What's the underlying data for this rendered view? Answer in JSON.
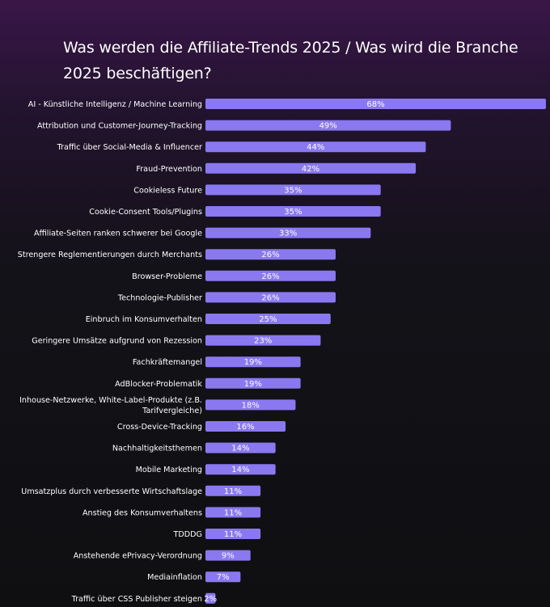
{
  "title": "Was werden die Affiliate-Trends 2025 / Was wird die Branche 2025 beschäftigen?",
  "colors": {
    "bar": "#8a78f0",
    "text": "#ffffff",
    "background": "#131218"
  },
  "chart_data": {
    "type": "bar",
    "orientation": "horizontal",
    "title": "Was werden die Affiliate-Trends 2025 / Was wird die Branche 2025 beschäftigen?",
    "xlim": [
      0,
      68
    ],
    "grid": false,
    "categories": [
      [
        "AI - Künstliche Intelligenz / Machine Learning"
      ],
      [
        "Attribution und Customer-Journey-Tracking"
      ],
      [
        "Traffic über Social-Media & Influencer"
      ],
      [
        "Fraud-Prevention"
      ],
      [
        "Cookieless Future"
      ],
      [
        "Cookie-Consent Tools/Plugins"
      ],
      [
        "Affiliate-Seiten ranken schwerer bei Google"
      ],
      [
        "Strengere Reglementierungen durch Merchants"
      ],
      [
        "Browser-Probleme"
      ],
      [
        "Technologie-Publisher"
      ],
      [
        "Einbruch im Konsumverhalten"
      ],
      [
        "Geringere Umsätze aufgrund von Rezession"
      ],
      [
        "Fachkräftemangel"
      ],
      [
        "AdBlocker-Problematik"
      ],
      [
        "Inhouse-Netzwerke, White-Label-Produkte (z.B.",
        "Tarifvergleiche)"
      ],
      [
        "Cross-Device-Tracking"
      ],
      [
        "Nachhaltigkeitsthemen"
      ],
      [
        "Mobile Marketing"
      ],
      [
        "Umsatzplus durch verbesserte Wirtschaftslage"
      ],
      [
        "Anstieg des Konsumverhaltens"
      ],
      [
        "TDDDG"
      ],
      [
        "Anstehende ePrivacy-Verordnung"
      ],
      [
        "Mediainflation"
      ],
      [
        "Traffic über CSS Publisher steigen"
      ]
    ],
    "values": [
      68,
      49,
      44,
      42,
      35,
      35,
      33,
      26,
      26,
      26,
      25,
      23,
      19,
      19,
      18,
      16,
      14,
      14,
      11,
      11,
      11,
      9,
      7,
      2
    ],
    "value_labels": [
      "68%",
      "49%",
      "44%",
      "42%",
      "35%",
      "35%",
      "33%",
      "26%",
      "26%",
      "26%",
      "25%",
      "23%",
      "19%",
      "19%",
      "18%",
      "16%",
      "14%",
      "14%",
      "11%",
      "11%",
      "11%",
      "9%",
      "7%",
      "2%"
    ]
  }
}
